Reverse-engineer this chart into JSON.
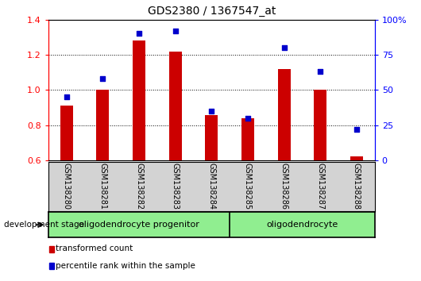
{
  "title": "GDS2380 / 1367547_at",
  "samples": [
    "GSM138280",
    "GSM138281",
    "GSM138282",
    "GSM138283",
    "GSM138284",
    "GSM138285",
    "GSM138286",
    "GSM138287",
    "GSM138288"
  ],
  "transformed_count": [
    0.91,
    1.0,
    1.28,
    1.22,
    0.855,
    0.84,
    1.12,
    1.0,
    0.62
  ],
  "percentile_rank": [
    45,
    58,
    90,
    92,
    35,
    30,
    80,
    63,
    22
  ],
  "ylim_left": [
    0.6,
    1.4
  ],
  "ylim_right": [
    0,
    100
  ],
  "yticks_left": [
    0.6,
    0.8,
    1.0,
    1.2,
    1.4
  ],
  "yticks_right": [
    0,
    25,
    50,
    75,
    100
  ],
  "bar_color": "#cc0000",
  "dot_color": "#0000cc",
  "group1_label": "oligodendrocyte progenitor",
  "group2_label": "oligodendrocyte",
  "group1_indices": [
    0,
    1,
    2,
    3,
    4
  ],
  "group2_indices": [
    5,
    6,
    7,
    8
  ],
  "stage_label": "development stage",
  "legend_bar_label": "transformed count",
  "legend_dot_label": "percentile rank within the sample",
  "group1_color": "#90ee90",
  "group2_color": "#90ee90",
  "tick_label_area_color": "#d3d3d3",
  "grid_vals": [
    0.8,
    1.0,
    1.2
  ]
}
